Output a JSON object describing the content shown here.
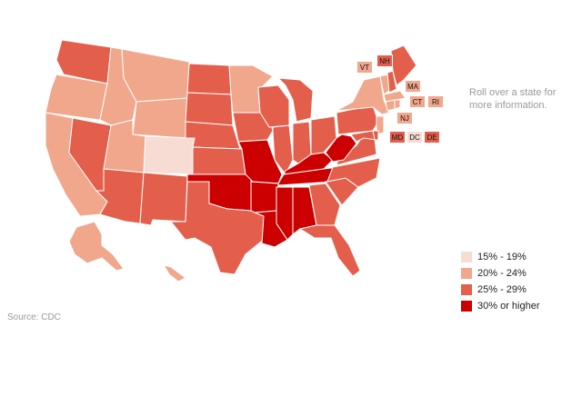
{
  "colors": {
    "c15_19": "#f7dcd4",
    "c20_24": "#f1a78c",
    "c25_29": "#e35f4c",
    "c30_plus": "#cc0000"
  },
  "hint": "Roll over a state for more information.",
  "source": "Source: CDC",
  "legend": [
    {
      "label": "15% - 19%",
      "color": "#f7dcd4"
    },
    {
      "label": "20% - 24%",
      "color": "#f1a78c"
    },
    {
      "label": "25% - 29%",
      "color": "#e35f4c"
    },
    {
      "label": "30% or higher",
      "color": "#cc0000"
    }
  ],
  "small_states": [
    {
      "abbr": "VT",
      "color": "#f1a78c"
    },
    {
      "abbr": "NH",
      "color": "#e35f4c"
    },
    {
      "abbr": "MA",
      "color": "#f1a78c"
    },
    {
      "abbr": "CT",
      "color": "#f1a78c"
    },
    {
      "abbr": "RI",
      "color": "#f1a78c"
    },
    {
      "abbr": "NJ",
      "color": "#f1a78c"
    },
    {
      "abbr": "MD",
      "color": "#e35f4c"
    },
    {
      "abbr": "DC",
      "color": "#f7dcd4"
    },
    {
      "abbr": "DE",
      "color": "#e35f4c"
    }
  ]
}
